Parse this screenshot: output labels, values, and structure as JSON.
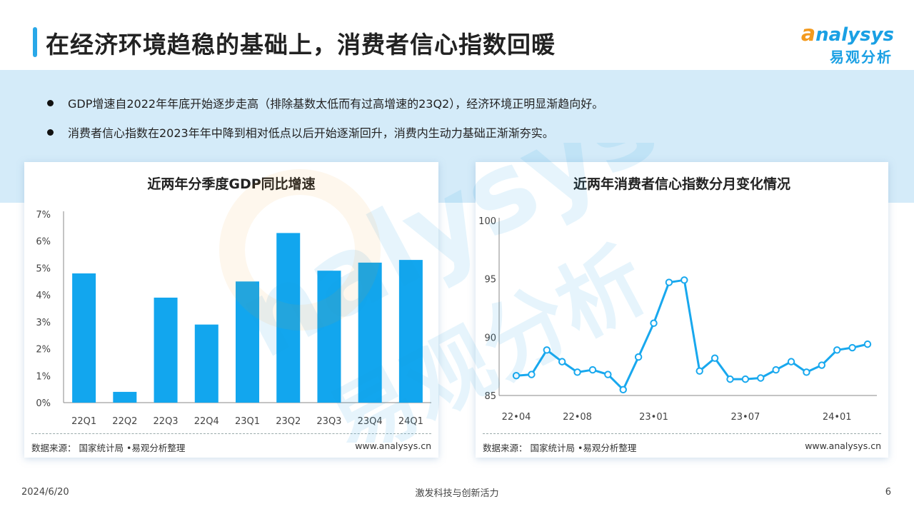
{
  "page": {
    "title": "在经济环境趋稳的基础上，消费者信心指数回暖",
    "date": "2024/6/20",
    "slogan": "激发科技与创新活力",
    "page_number": "6"
  },
  "logo": {
    "en_first": "a",
    "en_rest": "nalysys",
    "cn": "易观分析"
  },
  "bullets": [
    "GDP增速自2022年年底开始逐步走高（排除基数太低而有过高增速的23Q2），经济环境正明显渐趋向好。",
    "消费者信心指数在2023年年中降到相对低点以后开始逐渐回升，消费内生动力基础正渐渐夯实。"
  ],
  "colors": {
    "accent": "#1aa0e4",
    "bar": "#12a6ee",
    "line": "#18a8ee",
    "band": "#d4ebf9"
  },
  "chart_data": [
    {
      "type": "bar",
      "title": "近两年分季度GDP同比增速",
      "categories": [
        "22Q1",
        "22Q2",
        "22Q3",
        "22Q4",
        "23Q1",
        "23Q2",
        "23Q3",
        "23Q4",
        "24Q1"
      ],
      "values": [
        4.8,
        0.4,
        3.9,
        2.9,
        4.5,
        6.3,
        4.9,
        5.2,
        5.3
      ],
      "unit": "%",
      "ylim": [
        0,
        7
      ],
      "yticks": [
        "0%",
        "1%",
        "2%",
        "3%",
        "4%",
        "5%",
        "6%",
        "7%"
      ],
      "grid": false,
      "source": "数据来源： 国家统计局 •易观分析整理",
      "site": "www.analysys.cn"
    },
    {
      "type": "line",
      "title": "近两年消费者信心指数分月变化情况",
      "x": [
        "22-04",
        "22-05",
        "22-06",
        "22-07",
        "22-08",
        "22-09",
        "22-10",
        "22-11",
        "22-12",
        "23-01",
        "23-02",
        "23-03",
        "23-04",
        "23-05",
        "23-06",
        "23-07",
        "23-08",
        "23-09",
        "23-10",
        "23-11",
        "23-12",
        "24-01",
        "24-02",
        "24-03"
      ],
      "values": [
        86.7,
        86.8,
        88.9,
        87.9,
        87.0,
        87.2,
        86.8,
        85.5,
        88.3,
        91.2,
        94.7,
        94.9,
        87.1,
        88.2,
        86.4,
        86.4,
        86.5,
        87.2,
        87.9,
        87.0,
        87.6,
        88.9,
        89.1,
        89.4
      ],
      "xticks": [
        "22•04",
        "22•08",
        "23•01",
        "23•07",
        "24•01"
      ],
      "ylim": [
        85,
        100
      ],
      "yticks": [
        "85",
        "90",
        "95",
        "100"
      ],
      "grid": false,
      "source": "数据来源： 国家统计局 •易观分析整理",
      "site": "www.analysys.cn"
    }
  ]
}
